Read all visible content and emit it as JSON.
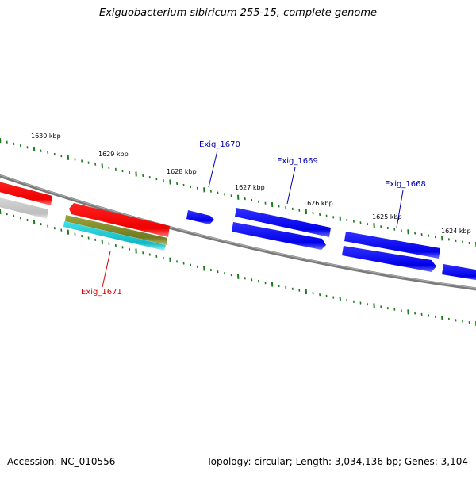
{
  "title": "Exiguobacterium sibiricum 255-15, complete genome",
  "footer": {
    "accession": "Accession: NC_010556",
    "summary": "Topology: circular; Length: 3,034,136 bp; Genes: 3,104"
  },
  "ruler": {
    "unit": "kbp",
    "labels": [
      "1630 kbp",
      "1629 kbp",
      "1628 kbp",
      "1627 kbp",
      "1626 kbp",
      "1625 kbp",
      "1624 kbp"
    ]
  },
  "genes": [
    {
      "name": "Exig_1671",
      "color": "#d40000"
    },
    {
      "name": "Exig_1670",
      "color": "#0000b4"
    },
    {
      "name": "Exig_1669",
      "color": "#0000b4"
    },
    {
      "name": "Exig_1668",
      "color": "#0000b4"
    }
  ],
  "colors": {
    "backbone": "#7a7a7a",
    "tick": "#1e7a1e",
    "forward_feature": "#0000ee",
    "reverse_feature": "#ee0000",
    "grey_feature": "#c8c8c8",
    "olive_feature": "#7f8c2a",
    "cyan_feature": "#20c8d0"
  }
}
